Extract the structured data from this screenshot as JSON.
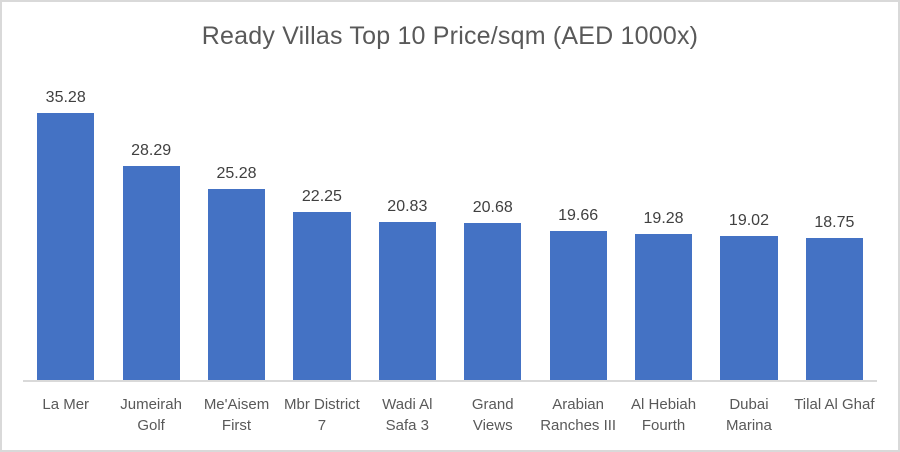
{
  "chart_data": {
    "type": "bar",
    "title": "Ready Villas Top 10 Price/sqm (AED 1000x)",
    "categories": [
      "La Mer",
      "Jumeirah Golf",
      "Me'Aisem First",
      "Mbr District 7",
      "Wadi Al Safa 3",
      "Grand Views",
      "Arabian Ranches III",
      "Al Hebiah Fourth",
      "Dubai Marina",
      "Tilal Al Ghaf"
    ],
    "values": [
      35.28,
      28.29,
      25.28,
      22.25,
      20.83,
      20.68,
      19.66,
      19.28,
      19.02,
      18.75
    ],
    "data_labels": [
      "35.28",
      "28.29",
      "25.28",
      "22.25",
      "20.83",
      "20.68",
      "19.66",
      "19.28",
      "19.02",
      "18.75"
    ],
    "xlabel": "",
    "ylabel": "",
    "ylim": [
      0,
      41
    ],
    "grid": false,
    "legend": false,
    "data_labels_position": "above-bars",
    "colors": {
      "bar": "#4472c4",
      "title_text": "#595959",
      "data_label_text": "#404040",
      "category_label_text": "#595959",
      "axis_line": "#d9d9d9",
      "chart_border": "#d9d9d9",
      "background": "#ffffff"
    }
  }
}
